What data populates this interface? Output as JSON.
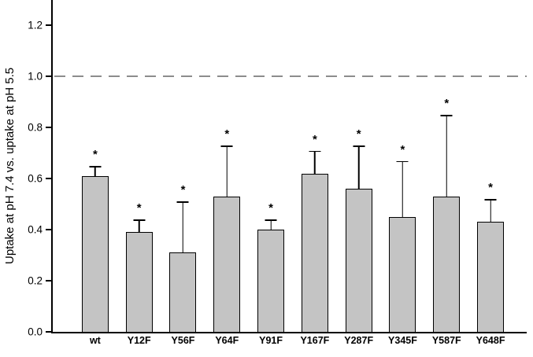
{
  "chart_data": {
    "type": "bar",
    "title": "",
    "xlabel": "",
    "ylabel": "Uptake at pH 7.4 vs. uptake at pH 5.5",
    "ylim": [
      0,
      1.3
    ],
    "yticks": [
      0.0,
      0.2,
      0.4,
      0.6,
      0.8,
      1.0,
      1.2
    ],
    "reference_line": 1.0,
    "grid": false,
    "legend": "none",
    "bar_color": "#c4c4c4",
    "bar_border_color": "#000000",
    "reference_line_color": "#8c8c8c",
    "significance_marker": "*",
    "categories": [
      "wt",
      "Y12F",
      "Y56F",
      "Y64F",
      "Y91F",
      "Y167F",
      "Y287F",
      "Y345F",
      "Y587F",
      "Y648F"
    ],
    "values": [
      0.61,
      0.39,
      0.31,
      0.53,
      0.4,
      0.62,
      0.56,
      0.45,
      0.53,
      0.43
    ],
    "error_upper": [
      0.04,
      0.05,
      0.2,
      0.2,
      0.04,
      0.09,
      0.17,
      0.22,
      0.32,
      0.09
    ],
    "significant": [
      true,
      true,
      true,
      true,
      true,
      true,
      true,
      true,
      true,
      true
    ]
  }
}
